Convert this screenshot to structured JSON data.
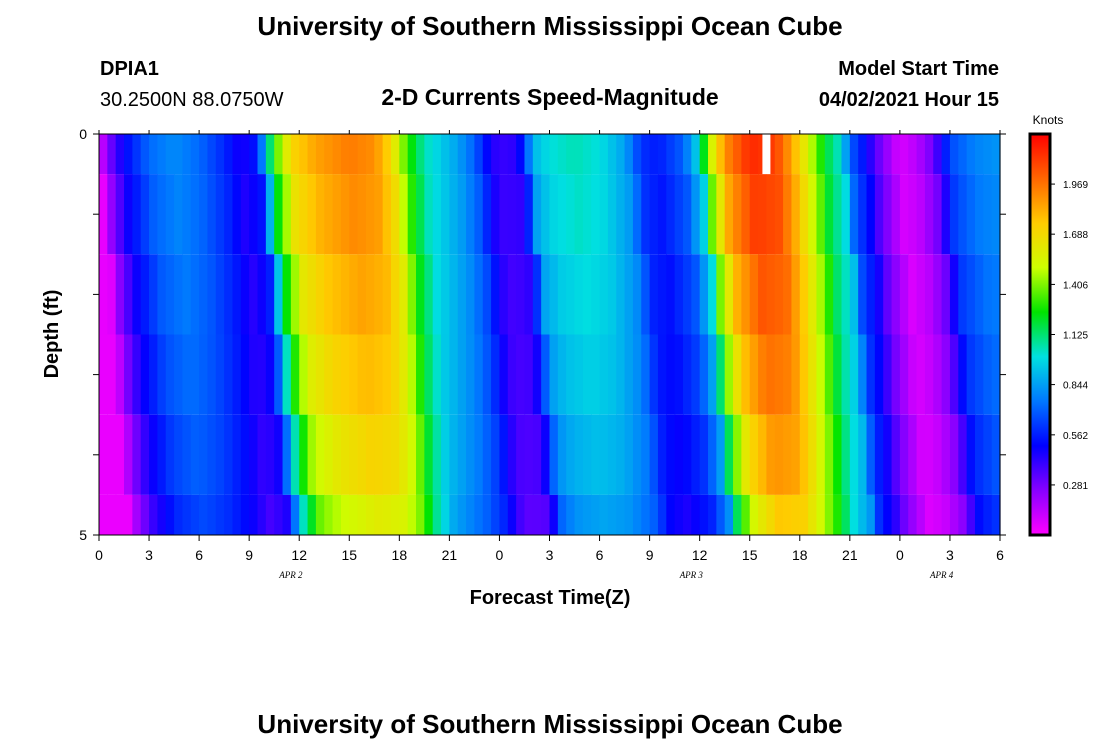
{
  "header": {
    "title": "University of Southern Mississippi Ocean Cube",
    "station": "DPIA1",
    "location": "30.2500N  88.0750W",
    "subtitle": "2-D Currents Speed-Magnitude",
    "model_label": "Model Start Time",
    "model_time": "04/02/2021 Hour 15"
  },
  "footer": {
    "title": "University of Southern Mississippi Ocean Cube"
  },
  "colors": {
    "background": "#ffffff",
    "scale": [
      "#ff00ff",
      "#8800ff",
      "#0000ff",
      "#0077ff",
      "#00e0e0",
      "#00e400",
      "#ccff00",
      "#ffcc00",
      "#ff6600",
      "#ff0000"
    ],
    "missing": "#ffffff"
  },
  "chart_data": {
    "type": "heatmap",
    "xlabel": "Forecast Time(Z)",
    "ylabel": "Depth (ft)",
    "x_ticks": [
      "0",
      "3",
      "6",
      "9",
      "12",
      "15",
      "18",
      "21",
      "0",
      "3",
      "6",
      "9",
      "12",
      "15",
      "18",
      "21",
      "0",
      "3",
      "6"
    ],
    "date_labels": [
      {
        "label": "APR 2",
        "hour": 11.5
      },
      {
        "label": "APR 3",
        "hour": 35.5
      },
      {
        "label": "APR 4",
        "hour": 50.5
      }
    ],
    "y_ticks": [
      "0",
      "5"
    ],
    "y_range": [
      0,
      5
    ],
    "hours_range": [
      0,
      54
    ],
    "colorbar": {
      "unit": "Knots",
      "ticks": [
        "1.969",
        "1.688",
        "1.406",
        "1.125",
        "0.844",
        "0.562",
        "0.281"
      ],
      "tick_values": [
        1.969,
        1.688,
        1.406,
        1.125,
        0.844,
        0.562,
        0.281
      ],
      "range": [
        0.0,
        2.25
      ]
    },
    "depth_levels": [
      0,
      1,
      2,
      3,
      4,
      5
    ],
    "time_profile": [
      {
        "t": 0,
        "v": 0.05
      },
      {
        "t": 0.5,
        "v": 0.25
      },
      {
        "t": 1.5,
        "v": 0.5
      },
      {
        "t": 3,
        "v": 0.72
      },
      {
        "t": 4.5,
        "v": 0.8
      },
      {
        "t": 6,
        "v": 0.72
      },
      {
        "t": 7.5,
        "v": 0.58
      },
      {
        "t": 8.5,
        "v": 0.45
      },
      {
        "t": 9.5,
        "v": 0.55
      },
      {
        "t": 10,
        "v": 0.95
      },
      {
        "t": 10.5,
        "v": 1.3
      },
      {
        "t": 11.5,
        "v": 1.7
      },
      {
        "t": 13,
        "v": 1.85
      },
      {
        "t": 15,
        "v": 1.95
      },
      {
        "t": 16.5,
        "v": 1.9
      },
      {
        "t": 17.5,
        "v": 1.7
      },
      {
        "t": 18.5,
        "v": 1.3
      },
      {
        "t": 19.5,
        "v": 1.05
      },
      {
        "t": 20.5,
        "v": 0.95
      },
      {
        "t": 21.5,
        "v": 0.85
      },
      {
        "t": 22.5,
        "v": 0.7
      },
      {
        "t": 23.5,
        "v": 0.45
      },
      {
        "t": 24,
        "v": 0.4
      },
      {
        "t": 25,
        "v": 0.42
      },
      {
        "t": 25.5,
        "v": 0.6
      },
      {
        "t": 26,
        "v": 0.9
      },
      {
        "t": 27,
        "v": 1.0
      },
      {
        "t": 28.5,
        "v": 1.05
      },
      {
        "t": 30,
        "v": 1.0
      },
      {
        "t": 31.5,
        "v": 0.85
      },
      {
        "t": 32.5,
        "v": 0.6
      },
      {
        "t": 33.5,
        "v": 0.55
      },
      {
        "t": 35,
        "v": 0.7
      },
      {
        "t": 36,
        "v": 1.0
      },
      {
        "t": 36.5,
        "v": 1.45
      },
      {
        "t": 37.5,
        "v": 1.9
      },
      {
        "t": 39,
        "v": 2.15
      },
      {
        "t": 40.5,
        "v": 2.1
      },
      {
        "t": 41.5,
        "v": 1.85
      },
      {
        "t": 42.5,
        "v": 1.55
      },
      {
        "t": 43.5,
        "v": 1.2
      },
      {
        "t": 44.5,
        "v": 1.0
      },
      {
        "t": 45,
        "v": 0.7
      },
      {
        "t": 46,
        "v": 0.5
      },
      {
        "t": 46.5,
        "v": 0.35
      },
      {
        "t": 48,
        "v": 0.08
      },
      {
        "t": 49,
        "v": 0.15
      },
      {
        "t": 50,
        "v": 0.3
      },
      {
        "t": 51,
        "v": 0.65
      },
      {
        "t": 52.5,
        "v": 0.78
      },
      {
        "t": 54,
        "v": 0.82
      }
    ],
    "depth_profiles": [
      {
        "depth_range": [
          0,
          0.5
        ],
        "shift_hours": 0.0,
        "scale": 1.0
      },
      {
        "depth_range": [
          0.5,
          1.5
        ],
        "shift_hours": 0.3,
        "scale": 0.98
      },
      {
        "depth_range": [
          1.5,
          2.5
        ],
        "shift_hours": 0.7,
        "scale": 0.95
      },
      {
        "depth_range": [
          2.5,
          3.5
        ],
        "shift_hours": 1.0,
        "scale": 0.92
      },
      {
        "depth_range": [
          3.5,
          4.5
        ],
        "shift_hours": 1.4,
        "scale": 0.88
      },
      {
        "depth_range": [
          4.5,
          5.0
        ],
        "shift_hours": 1.8,
        "scale": 0.82
      }
    ],
    "missing_cells": [
      {
        "hour": 40,
        "depth": [
          0,
          0.5
        ]
      }
    ]
  }
}
